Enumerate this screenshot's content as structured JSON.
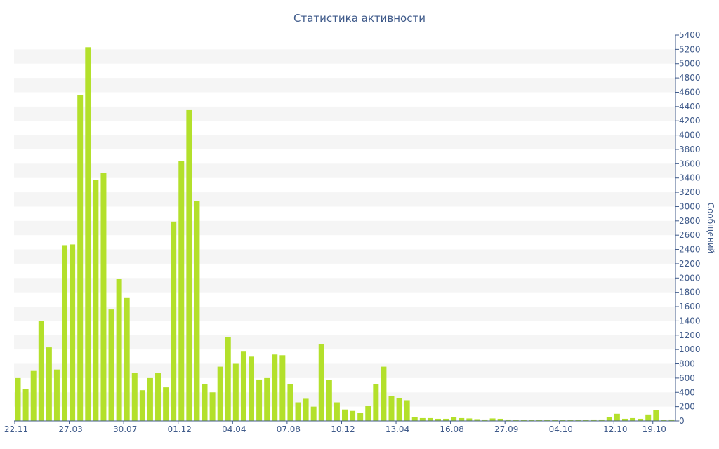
{
  "chart_data": {
    "type": "bar",
    "title": "Статистика активности",
    "xlabel": "",
    "ylabel": "Сообщений",
    "ylim": [
      0,
      5400
    ],
    "y_ticks": [
      0,
      200,
      400,
      600,
      800,
      1000,
      1200,
      1400,
      1600,
      1800,
      2000,
      2200,
      2400,
      2600,
      2800,
      3000,
      3200,
      3400,
      3600,
      3800,
      4000,
      4200,
      4400,
      4600,
      4800,
      5000,
      5200,
      5400
    ],
    "x_tick_labels": [
      {
        "label": "22.11",
        "index": 0
      },
      {
        "label": "27.03",
        "index": 7
      },
      {
        "label": "30.07",
        "index": 14
      },
      {
        "label": "01.12",
        "index": 21
      },
      {
        "label": "04.04",
        "index": 28
      },
      {
        "label": "07.08",
        "index": 35
      },
      {
        "label": "10.12",
        "index": 42
      },
      {
        "label": "13.04",
        "index": 49
      },
      {
        "label": "16.08",
        "index": 56
      },
      {
        "label": "27.09",
        "index": 63
      },
      {
        "label": "04.10",
        "index": 70
      },
      {
        "label": "12.10",
        "index": 77
      },
      {
        "label": "19.10",
        "index": 82
      }
    ],
    "series": [
      {
        "color": "#b3e02b",
        "values": [
          600,
          450,
          700,
          1400,
          1030,
          720,
          2460,
          2470,
          4560,
          5230,
          3370,
          3470,
          1560,
          1990,
          1720,
          670,
          430,
          600,
          670,
          470,
          2790,
          3640,
          4350,
          3080,
          520,
          400,
          760,
          1170,
          800,
          970,
          900,
          580,
          600,
          930,
          920,
          520,
          260,
          310,
          200,
          1070,
          570,
          260,
          160,
          140,
          110,
          210,
          520,
          760,
          350,
          320,
          290,
          55,
          40,
          40,
          30,
          30,
          50,
          40,
          35,
          25,
          20,
          35,
          30,
          20,
          15,
          15,
          15,
          15,
          15,
          15,
          15,
          15,
          15,
          15,
          20,
          20,
          50,
          100,
          30,
          40,
          30,
          90,
          150,
          15,
          20
        ]
      }
    ]
  },
  "style": {
    "bar_color": "#b3e02b",
    "band_color": "#f5f5f5",
    "text_color": "#3f5a8a",
    "axis_color": "#3f5a8a"
  }
}
